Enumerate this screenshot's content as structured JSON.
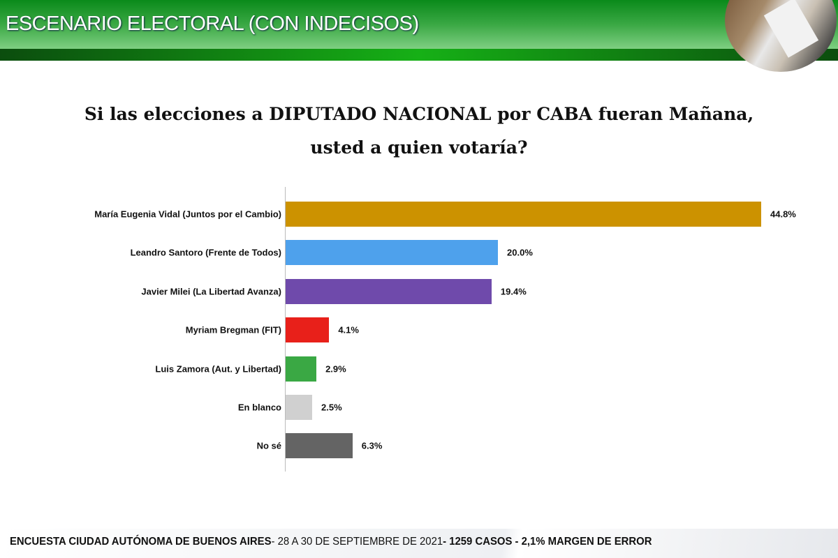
{
  "header": {
    "title": "ESCENARIO ELECTORAL (CON INDECISOS)"
  },
  "question": {
    "line1": "Si las elecciones a DIPUTADO NACIONAL por CABA fueran Mañana,",
    "line2": "usted a quien votaría?"
  },
  "chart_data": {
    "type": "bar",
    "orientation": "horizontal",
    "title": "Si las elecciones a DIPUTADO NACIONAL por CABA fueran Mañana, usted a quien votaría?",
    "categories": [
      "María Eugenia Vidal (Juntos por el Cambio)",
      "Leandro Santoro (Frente de Todos)",
      "Javier Milei (La Libertad Avanza)",
      "Myriam Bregman (FIT)",
      "Luis Zamora (Aut. y Libertad)",
      "En blanco",
      "No sé"
    ],
    "values": [
      44.8,
      20.0,
      19.4,
      4.1,
      2.9,
      2.5,
      6.3
    ],
    "labels": [
      "44.8%",
      "20.0%",
      "19.4%",
      "4.1%",
      "2.9%",
      "2.5%",
      "6.3%"
    ],
    "colors": [
      "#cc9200",
      "#4ea1ec",
      "#6f4aab",
      "#e8201a",
      "#3aa844",
      "#d0d0d0",
      "#646464"
    ],
    "xlim": [
      0,
      44.8
    ],
    "grid": false,
    "unit": "%"
  },
  "footer": {
    "part1": "ENCUESTA CIUDAD AUTÓNOMA DE BUENOS AIRES",
    "part2": "- 28 A 30 DE SEPTIEMBRE DE 2021",
    "part3": "- 1259 CASOS - 2,1%",
    "part4": " MARGEN DE ERROR"
  }
}
